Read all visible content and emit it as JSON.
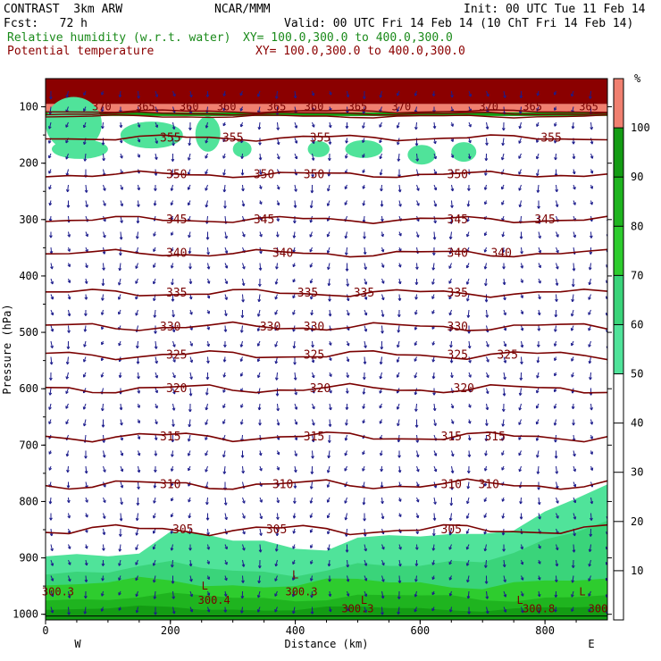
{
  "header": {
    "model": "CONTRAST  3km ARW",
    "org": "NCAR/MMM",
    "init": "Init: 00 UTC Tue 11 Feb 14",
    "fcst": "Fcst:   72 h",
    "valid": "Valid: 00 UTC Fri 14 Feb 14 (10 ChT Fri 14 Feb 14)",
    "field1": "Relative humidity (w.r.t. water)",
    "field1_xy": "XY= 100.0,300.0 to 400.0,300.0",
    "field2": "Potential temperature",
    "field2_xy": "XY= 100.0,300.0 to 400.0,300.0"
  },
  "colors": {
    "theta_line": "#7a0000",
    "wind_arrow": "#1c1c8c",
    "rh_40_50": "#fefefe",
    "rh_50_60": "#50e39a",
    "rh_60_70": "#3ad47a",
    "rh_70_80": "#2ecc2e",
    "rh_80_90": "#1fb41f",
    "rh_90_100": "#139c13",
    "rh_100_plus": "#f08070",
    "strat": "#8b0000"
  },
  "chart_data": {
    "type": "heatmap",
    "xlabel": "Distance (km)",
    "ylabel": "Pressure (hPa)",
    "xlim": [
      0,
      900
    ],
    "ylim": [
      1010,
      50
    ],
    "x_ticks": [
      "0",
      "200",
      "400",
      "600",
      "800"
    ],
    "y_ticks": [
      "100",
      "200",
      "300",
      "400",
      "500",
      "600",
      "700",
      "800",
      "900",
      "1000"
    ],
    "x_tick_values": [
      0,
      200,
      400,
      600,
      800
    ],
    "y_tick_values": [
      100,
      200,
      300,
      400,
      500,
      600,
      700,
      800,
      900,
      1000
    ],
    "endpoints": {
      "left": "W",
      "right": "E"
    },
    "colorbar": {
      "unit": "%",
      "labels": [
        "10",
        "20",
        "30",
        "40",
        "50",
        "60",
        "70",
        "80",
        "90",
        "100"
      ],
      "label_values": [
        10,
        20,
        30,
        40,
        50,
        60,
        70,
        80,
        90,
        100
      ]
    },
    "theta_contours": [
      {
        "value": 355,
        "p": 155,
        "labels": [
          {
            "x": 200,
            "t": "355"
          },
          {
            "x": 300,
            "t": "355"
          },
          {
            "x": 440,
            "t": "355"
          },
          {
            "x": 810,
            "t": "355"
          }
        ]
      },
      {
        "value": 350,
        "p": 220,
        "labels": [
          {
            "x": 210,
            "t": "350"
          },
          {
            "x": 350,
            "t": "350"
          },
          {
            "x": 430,
            "t": "350"
          },
          {
            "x": 660,
            "t": "350"
          }
        ]
      },
      {
        "value": 345,
        "p": 300,
        "labels": [
          {
            "x": 210,
            "t": "345"
          },
          {
            "x": 350,
            "t": "345"
          },
          {
            "x": 660,
            "t": "345"
          },
          {
            "x": 800,
            "t": "345"
          }
        ]
      },
      {
        "value": 340,
        "p": 360,
        "labels": [
          {
            "x": 210,
            "t": "340"
          },
          {
            "x": 380,
            "t": "340"
          },
          {
            "x": 660,
            "t": "340"
          },
          {
            "x": 730,
            "t": "340"
          }
        ]
      },
      {
        "value": 335,
        "p": 430,
        "labels": [
          {
            "x": 210,
            "t": "335"
          },
          {
            "x": 420,
            "t": "335"
          },
          {
            "x": 510,
            "t": "335"
          },
          {
            "x": 660,
            "t": "335"
          }
        ]
      },
      {
        "value": 330,
        "p": 490,
        "labels": [
          {
            "x": 200,
            "t": "330"
          },
          {
            "x": 360,
            "t": "330"
          },
          {
            "x": 430,
            "t": "330"
          },
          {
            "x": 660,
            "t": "330"
          }
        ]
      },
      {
        "value": 325,
        "p": 540,
        "labels": [
          {
            "x": 210,
            "t": "325"
          },
          {
            "x": 430,
            "t": "325"
          },
          {
            "x": 660,
            "t": "325"
          },
          {
            "x": 740,
            "t": "325"
          }
        ]
      },
      {
        "value": 320,
        "p": 600,
        "labels": [
          {
            "x": 210,
            "t": "320"
          },
          {
            "x": 440,
            "t": "320"
          },
          {
            "x": 670,
            "t": "320"
          }
        ]
      },
      {
        "value": 315,
        "p": 685,
        "labels": [
          {
            "x": 200,
            "t": "315"
          },
          {
            "x": 430,
            "t": "315"
          },
          {
            "x": 650,
            "t": "315"
          },
          {
            "x": 720,
            "t": "315"
          }
        ]
      },
      {
        "value": 310,
        "p": 770,
        "labels": [
          {
            "x": 200,
            "t": "310"
          },
          {
            "x": 380,
            "t": "310"
          },
          {
            "x": 650,
            "t": "310"
          },
          {
            "x": 710,
            "t": "310"
          }
        ]
      },
      {
        "value": 305,
        "p": 850,
        "labels": [
          {
            "x": 220,
            "t": "305"
          },
          {
            "x": 370,
            "t": "305"
          },
          {
            "x": 650,
            "t": "305"
          }
        ]
      }
    ],
    "stratosphere_labels": [
      {
        "x": 90,
        "t": "370"
      },
      {
        "x": 160,
        "t": "365"
      },
      {
        "x": 230,
        "t": "360"
      },
      {
        "x": 290,
        "t": "360"
      },
      {
        "x": 370,
        "t": "365"
      },
      {
        "x": 430,
        "t": "360"
      },
      {
        "x": 500,
        "t": "365"
      },
      {
        "x": 570,
        "t": "370"
      },
      {
        "x": 710,
        "t": "370"
      },
      {
        "x": 780,
        "t": "365"
      },
      {
        "x": 870,
        "t": "365"
      }
    ],
    "surface_labels": [
      {
        "x": 20,
        "p": 960,
        "t": "300.3"
      },
      {
        "x": 270,
        "p": 975,
        "t": "300.4"
      },
      {
        "x": 410,
        "p": 960,
        "t": "300.3"
      },
      {
        "x": 500,
        "p": 990,
        "t": "300.3"
      },
      {
        "x": 790,
        "p": 990,
        "t": "300.8"
      },
      {
        "x": 885,
        "p": 990,
        "t": "300"
      }
    ],
    "low_markers": [
      {
        "x": 400,
        "p": 930,
        "t": "L"
      },
      {
        "x": 255,
        "p": 950,
        "t": "L"
      },
      {
        "x": 510,
        "p": 975,
        "t": "L"
      },
      {
        "x": 760,
        "p": 975,
        "t": "L"
      },
      {
        "x": 860,
        "p": 960,
        "t": "L"
      }
    ]
  }
}
